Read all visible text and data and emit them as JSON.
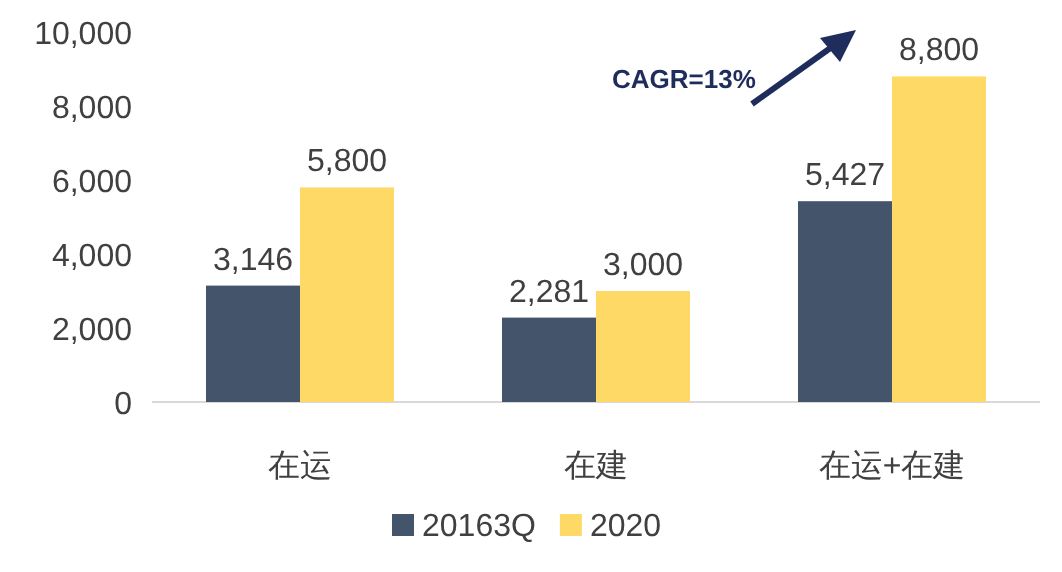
{
  "chart_data": {
    "type": "bar",
    "categories": [
      "在运",
      "在建",
      "在运+在建"
    ],
    "series": [
      {
        "name": "20163Q",
        "color": "#44546a",
        "values": [
          3146,
          2281,
          5427
        ],
        "value_labels": [
          "3,146",
          "2,281",
          "5,427"
        ]
      },
      {
        "name": "2020",
        "color": "#ffd966",
        "values": [
          5800,
          3000,
          8800
        ],
        "value_labels": [
          "5,800",
          "3,000",
          "8,800"
        ]
      }
    ],
    "ylim": [
      0,
      10000
    ],
    "yticks": [
      {
        "value": 0,
        "label": "0"
      },
      {
        "value": 2000,
        "label": "2,000"
      },
      {
        "value": 4000,
        "label": "4,000"
      },
      {
        "value": 6000,
        "label": "6,000"
      },
      {
        "value": 8000,
        "label": "8,000"
      },
      {
        "value": 10000,
        "label": "10,000"
      }
    ],
    "legend": "bottom",
    "annotations": [
      "CAGR=13%"
    ]
  }
}
